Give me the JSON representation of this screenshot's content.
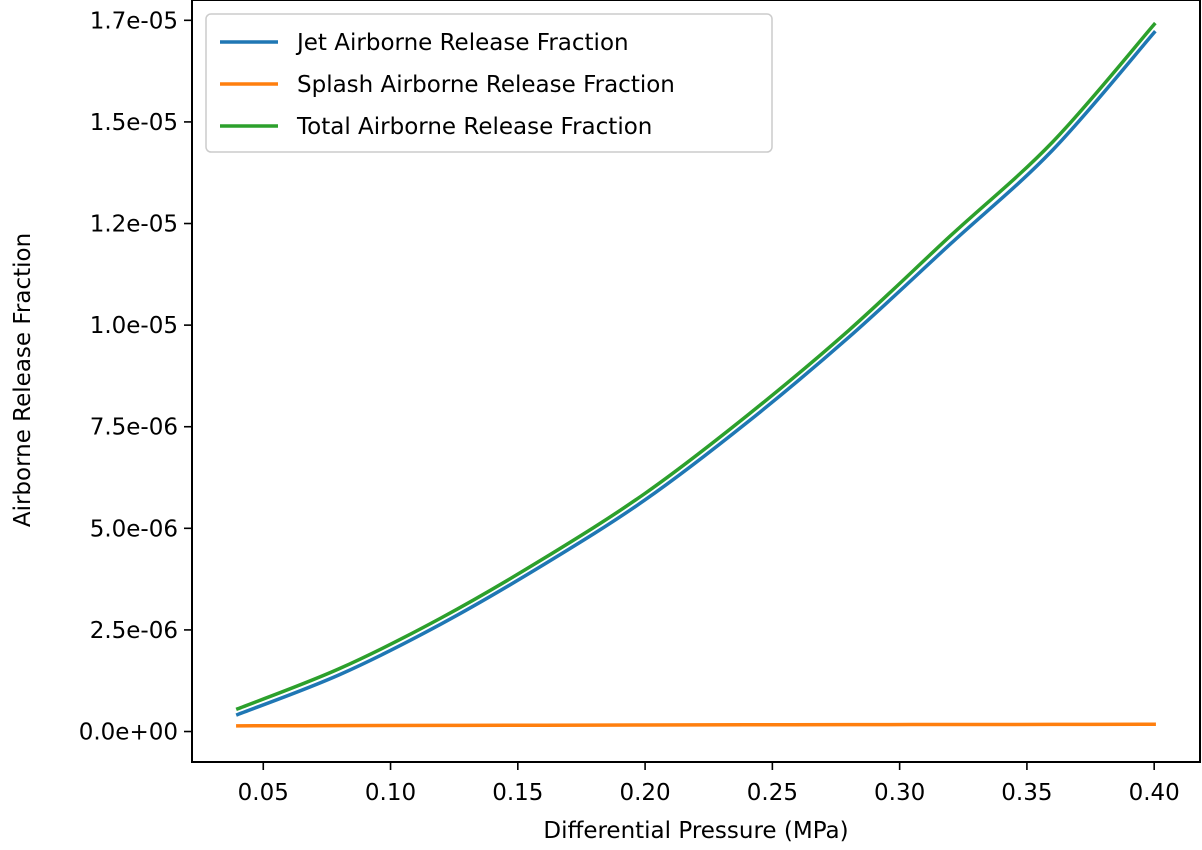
{
  "chart_data": {
    "type": "line",
    "title": "",
    "xlabel": "Differential Pressure (MPa)",
    "ylabel": "Airborne Release Fraction",
    "xlim": [
      0.022,
      0.418
    ],
    "ylim": [
      -7.5e-07,
      1.8e-05
    ],
    "xticks": [
      0.05,
      0.1,
      0.15,
      0.2,
      0.25,
      0.3,
      0.35,
      0.4
    ],
    "xtick_labels": [
      "0.05",
      "0.10",
      "0.15",
      "0.20",
      "0.25",
      "0.30",
      "0.35",
      "0.40"
    ],
    "yticks": [
      0,
      2.5e-06,
      5e-06,
      7.5e-06,
      1e-05,
      1.25e-05,
      1.5e-05,
      1.75e-05
    ],
    "ytick_labels": [
      "0.0e+00",
      "2.5e-06",
      "5.0e-06",
      "7.5e-06",
      "1.0e-05",
      "1.2e-05",
      "1.5e-05",
      "1.7e-05"
    ],
    "grid": false,
    "legend_position": "top-left",
    "series": [
      {
        "name": "Jet Airborne Release Fraction",
        "color": "#1f77b4",
        "x": [
          0.04,
          0.08,
          0.12,
          0.16,
          0.2,
          0.24,
          0.28,
          0.32,
          0.36,
          0.4
        ],
        "y": [
          4.2e-07,
          1.4e-06,
          2.65e-06,
          4.1e-06,
          5.7e-06,
          7.6e-06,
          9.7e-06,
          1.2e-05,
          1.43e-05,
          1.72e-05
        ]
      },
      {
        "name": "Splash Airborne Release Fraction",
        "color": "#ff7f0e",
        "x": [
          0.04,
          0.08,
          0.12,
          0.16,
          0.2,
          0.24,
          0.28,
          0.32,
          0.36,
          0.4
        ],
        "y": [
          1.4e-07,
          1.45e-07,
          1.5e-07,
          1.55e-07,
          1.6e-07,
          1.65e-07,
          1.7e-07,
          1.72e-07,
          1.75e-07,
          1.78e-07
        ]
      },
      {
        "name": "Total Airborne Release Fraction",
        "color": "#2ca02c",
        "x": [
          0.04,
          0.08,
          0.12,
          0.16,
          0.2,
          0.24,
          0.28,
          0.32,
          0.36,
          0.4
        ],
        "y": [
          5.6e-07,
          1.55e-06,
          2.8e-06,
          4.25e-06,
          5.86e-06,
          7.77e-06,
          9.87e-06,
          1.22e-05,
          1.45e-05,
          1.74e-05
        ]
      }
    ]
  }
}
